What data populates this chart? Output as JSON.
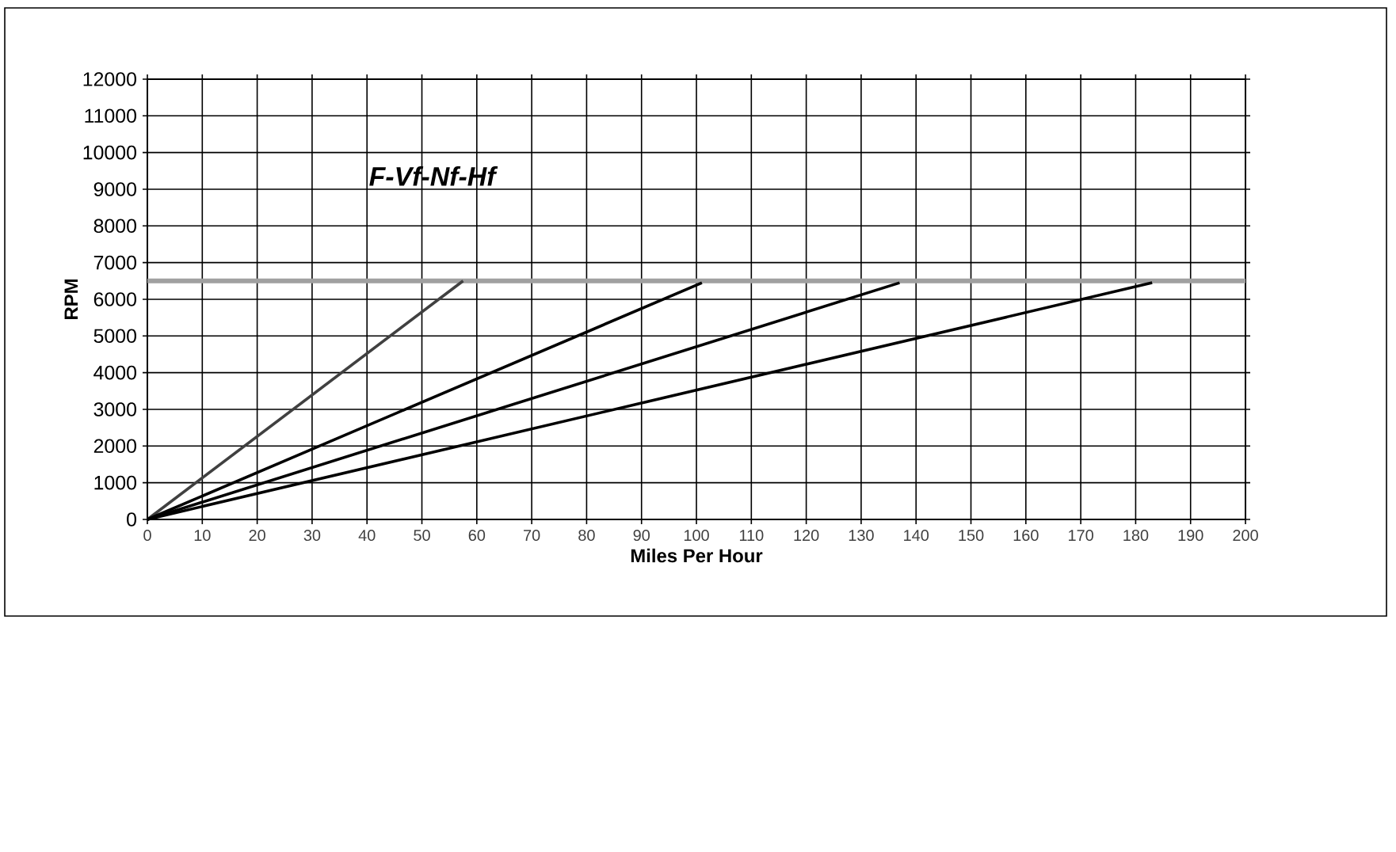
{
  "chart_data": {
    "type": "line",
    "xlabel": "Miles Per Hour",
    "ylabel": "RPM",
    "annotations": [
      "F-Vf-Nf-Hf"
    ],
    "xlim": [
      0,
      200
    ],
    "xticks": [
      0,
      10,
      20,
      30,
      40,
      50,
      60,
      70,
      80,
      90,
      100,
      110,
      120,
      130,
      140,
      150,
      160,
      170,
      180,
      190,
      200
    ],
    "ylim": [
      0,
      12000
    ],
    "yticks": [
      0,
      1000,
      2000,
      3000,
      4000,
      5000,
      6000,
      7000,
      8000,
      9000,
      10000,
      11000,
      12000
    ],
    "grid": true,
    "marker": "none",
    "line_style": "solid",
    "series": [
      {
        "color": "#404040",
        "x": [
          0,
          57.5
        ],
        "values": [
          0,
          6500
        ]
      },
      {
        "color": "#000000",
        "x": [
          0,
          101
        ],
        "values": [
          0,
          6450
        ]
      },
      {
        "color": "#000000",
        "x": [
          0,
          137
        ],
        "values": [
          0,
          6450
        ]
      },
      {
        "color": "#000000",
        "x": [
          0,
          183
        ],
        "values": [
          0,
          6450
        ]
      }
    ],
    "ref_lines": [
      {
        "axis": "y",
        "value": 6500,
        "color": "#a0a0a0"
      }
    ]
  }
}
